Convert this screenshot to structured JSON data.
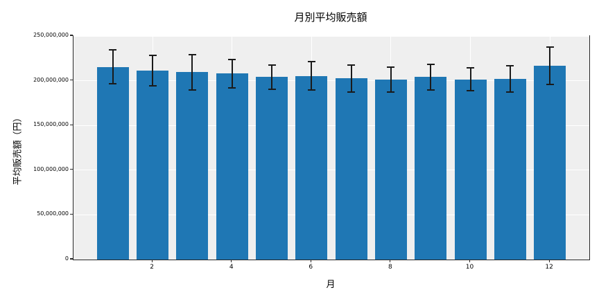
{
  "chart_data": {
    "type": "bar",
    "title": "月別平均販売額",
    "xlabel": "月",
    "ylabel": "平均販売額（円）",
    "categories": [
      1,
      2,
      3,
      4,
      5,
      6,
      7,
      8,
      9,
      10,
      11,
      12
    ],
    "values": [
      215500000,
      211500000,
      209500000,
      208000000,
      204000000,
      205500000,
      202500000,
      201000000,
      204000000,
      201500000,
      202000000,
      216500000
    ],
    "errors": [
      19000000,
      17000000,
      19500000,
      16000000,
      13500000,
      15500000,
      15000000,
      14000000,
      14500000,
      13000000,
      15000000,
      21000000
    ],
    "ylim": [
      0,
      250000000
    ],
    "yticks": [
      0,
      50000000,
      100000000,
      150000000,
      200000000,
      250000000
    ],
    "ytick_labels": [
      "0",
      "50,000,000",
      "100,000,000",
      "150,000,000",
      "200,000,000",
      "250,000,000"
    ],
    "xticks": [
      2,
      4,
      6,
      8,
      10,
      12
    ],
    "xtick_labels": [
      "2",
      "4",
      "6",
      "8",
      "10",
      "12"
    ],
    "grid": true,
    "legend_position": "none",
    "bar_color": "#1f77b4",
    "error_color": "#1a1a1a",
    "plot_background": "#efefef",
    "grid_color": "#ffffff",
    "figure_background": "#ffffff"
  }
}
